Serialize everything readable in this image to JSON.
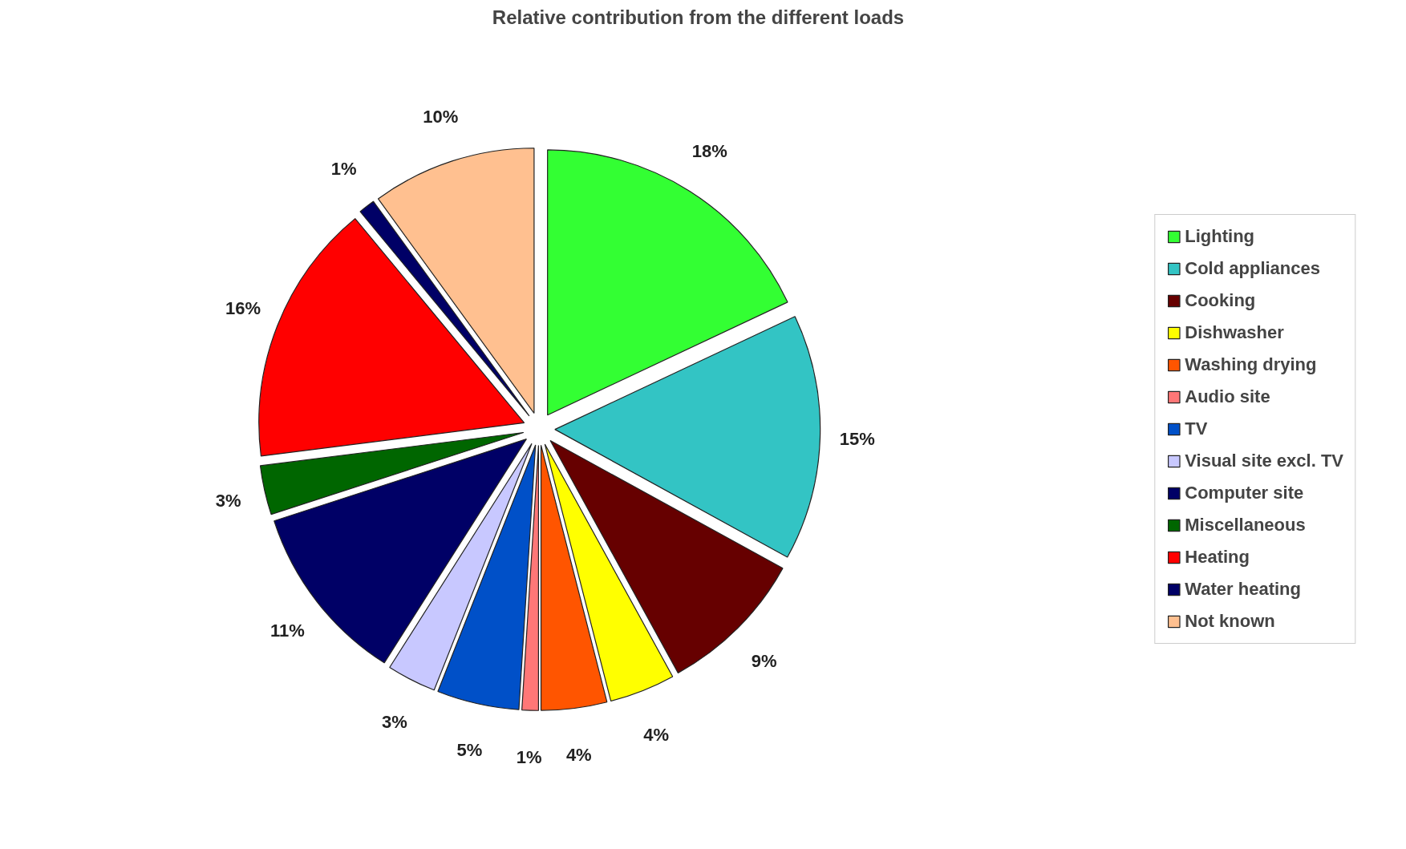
{
  "chart_data": {
    "type": "pie",
    "title": "Relative contribution from the different loads",
    "categories": [
      "Lighting",
      "Cold appliances",
      "Cooking",
      "Dishwasher",
      "Washing drying",
      "Audio site",
      "TV",
      "Visual site excl. TV",
      "Computer site",
      "Miscellaneous",
      "Heating",
      "Water heating",
      "Not known"
    ],
    "values": [
      18,
      15,
      9,
      4,
      4,
      1,
      5,
      3,
      11,
      3,
      16,
      1,
      10
    ],
    "colors": [
      "#33ff33",
      "#33c4c4",
      "#660000",
      "#ffff00",
      "#ff5500",
      "#ff7777",
      "#0050c8",
      "#c8c8ff",
      "#000066",
      "#006600",
      "#ff0000",
      "#000066",
      "#ffc090"
    ],
    "value_labels": [
      "18%",
      "15%",
      "9%",
      "4%",
      "4%",
      "1%",
      "5%",
      "3%",
      "11%",
      "3%",
      "16%",
      "1%",
      "10%"
    ],
    "legend": "right"
  }
}
